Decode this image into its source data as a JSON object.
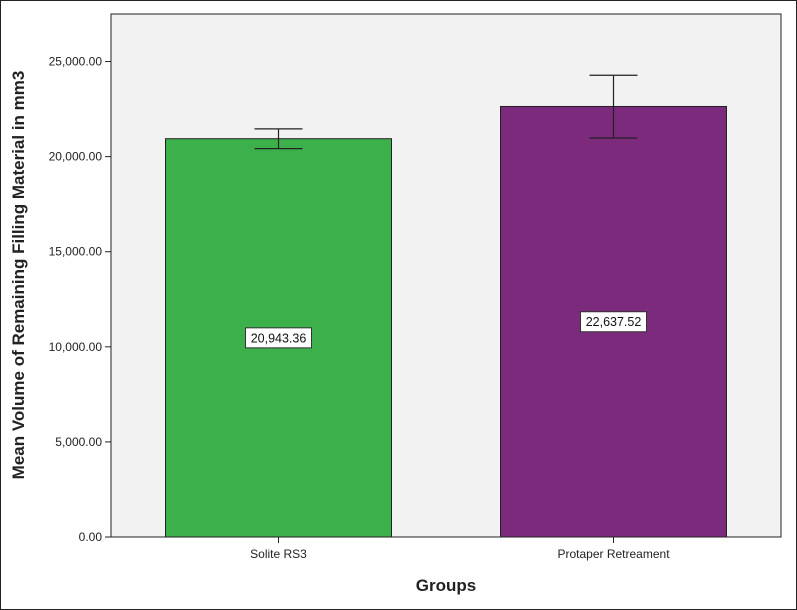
{
  "chart_data": {
    "type": "bar",
    "title": "",
    "xlabel": "Groups",
    "ylabel": "Mean Volume of Remaining Filling Material in mm3",
    "categories": [
      "Solite RS3",
      "Protaper Retreament"
    ],
    "values": [
      20943.36,
      22637.52
    ],
    "value_labels": [
      "20,943.36",
      "22,637.52"
    ],
    "error_bars": [
      {
        "low": 20420,
        "high": 21460
      },
      {
        "low": 20980,
        "high": 24280
      }
    ],
    "ylim": [
      0,
      27500
    ],
    "yticks": [
      0,
      5000,
      10000,
      15000,
      20000,
      25000
    ],
    "ytick_labels": [
      "0.00",
      "5,000.00",
      "10,000.00",
      "15,000.00",
      "20,000.00",
      "25,000.00"
    ],
    "grid": false,
    "legend": "none",
    "colors": {
      "bars": [
        "#3cb04a",
        "#7b2a7c"
      ],
      "plot_background": "#f2f2f2",
      "outline": "#222222"
    }
  }
}
